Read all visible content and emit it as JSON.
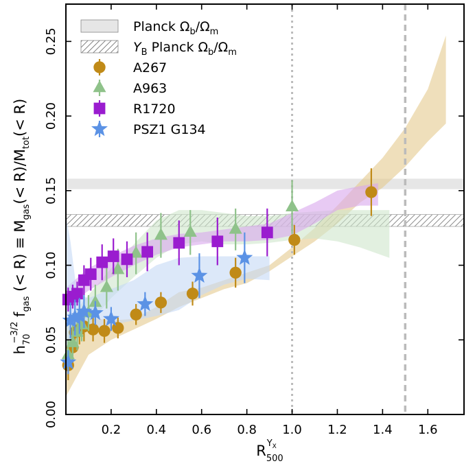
{
  "chart_data": {
    "type": "scatter",
    "xlabel": "R_500^{Y_X}",
    "ylabel": "h_70^{-3/2} f_gas (< R) ≡ M_gas(< R)/M_tot(< R)",
    "xlim": [
      0.0,
      1.76
    ],
    "ylim": [
      0.0,
      0.275
    ],
    "x_ticks": [
      "0.2",
      "0.4",
      "0.6",
      "0.8",
      "1.0",
      "1.2",
      "1.4",
      "1.6"
    ],
    "y_ticks": [
      "0.00",
      "0.05",
      "0.10",
      "0.15",
      "0.20",
      "0.25"
    ],
    "grid": false,
    "legend_position": "top-left",
    "reference_lines": [
      {
        "x": 1.0,
        "style": "dotted",
        "color": "#bbbbbb"
      },
      {
        "x": 1.5,
        "style": "dashed",
        "color": "#bbbbbb"
      }
    ],
    "horizontal_bands": [
      {
        "name": "Planck Ω_b/Ω_m",
        "y": [
          0.151,
          0.158
        ],
        "fill": "#e6e6e6",
        "hatch": false
      },
      {
        "name": "Y_B Planck Ω_b/Ω_m",
        "y": [
          0.126,
          0.134
        ],
        "fill": "#ffffff",
        "hatch": true
      }
    ],
    "series": [
      {
        "name": "A267",
        "marker": "circle",
        "color": "#c08a17",
        "band_color": "#e4c98e",
        "points": [
          [
            0.01,
            0.033,
            0.01
          ],
          [
            0.03,
            0.045,
            0.012
          ],
          [
            0.04,
            0.055,
            0.012
          ],
          [
            0.06,
            0.057,
            0.01
          ],
          [
            0.08,
            0.059,
            0.01
          ],
          [
            0.12,
            0.057,
            0.008
          ],
          [
            0.17,
            0.056,
            0.008
          ],
          [
            0.23,
            0.058,
            0.007
          ],
          [
            0.31,
            0.067,
            0.007
          ],
          [
            0.42,
            0.075,
            0.007
          ],
          [
            0.56,
            0.081,
            0.008
          ],
          [
            0.75,
            0.095,
            0.01
          ],
          [
            1.01,
            0.117,
            0.01
          ],
          [
            1.35,
            0.149,
            0.016
          ]
        ],
        "band_upper": [
          [
            0.0,
            0.06
          ],
          [
            0.1,
            0.065
          ],
          [
            0.2,
            0.063
          ],
          [
            0.3,
            0.064
          ],
          [
            0.4,
            0.072
          ],
          [
            0.5,
            0.082
          ],
          [
            0.6,
            0.085
          ],
          [
            0.7,
            0.09
          ],
          [
            0.8,
            0.095
          ],
          [
            0.9,
            0.1
          ],
          [
            1.0,
            0.112
          ],
          [
            1.1,
            0.125
          ],
          [
            1.2,
            0.14
          ],
          [
            1.3,
            0.156
          ],
          [
            1.4,
            0.172
          ],
          [
            1.5,
            0.192
          ],
          [
            1.6,
            0.218
          ],
          [
            1.68,
            0.254
          ]
        ],
        "band_lower": [
          [
            1.68,
            0.195
          ],
          [
            1.6,
            0.183
          ],
          [
            1.5,
            0.166
          ],
          [
            1.4,
            0.152
          ],
          [
            1.3,
            0.142
          ],
          [
            1.2,
            0.128
          ],
          [
            1.1,
            0.116
          ],
          [
            1.0,
            0.106
          ],
          [
            0.9,
            0.096
          ],
          [
            0.8,
            0.088
          ],
          [
            0.7,
            0.084
          ],
          [
            0.6,
            0.078
          ],
          [
            0.5,
            0.072
          ],
          [
            0.4,
            0.064
          ],
          [
            0.3,
            0.057
          ],
          [
            0.2,
            0.05
          ],
          [
            0.1,
            0.04
          ],
          [
            0.0,
            0.012
          ]
        ]
      },
      {
        "name": "A963",
        "marker": "triangle",
        "color": "#8fc28a",
        "band_color": "#cfe6cc",
        "points": [
          [
            0.01,
            0.04,
            0.01
          ],
          [
            0.03,
            0.048,
            0.012
          ],
          [
            0.05,
            0.055,
            0.012
          ],
          [
            0.07,
            0.06,
            0.011
          ],
          [
            0.1,
            0.068,
            0.012
          ],
          [
            0.13,
            0.075,
            0.012
          ],
          [
            0.18,
            0.085,
            0.014
          ],
          [
            0.23,
            0.097,
            0.014
          ],
          [
            0.31,
            0.108,
            0.014
          ],
          [
            0.42,
            0.12,
            0.015
          ],
          [
            0.55,
            0.122,
            0.015
          ],
          [
            0.75,
            0.124,
            0.014
          ],
          [
            1.0,
            0.139,
            0.018
          ]
        ],
        "band_upper": [
          [
            0.0,
            0.062
          ],
          [
            0.1,
            0.08
          ],
          [
            0.2,
            0.098
          ],
          [
            0.3,
            0.114
          ],
          [
            0.4,
            0.13
          ],
          [
            0.5,
            0.137
          ],
          [
            0.6,
            0.137
          ],
          [
            0.7,
            0.135
          ],
          [
            0.8,
            0.133
          ],
          [
            0.9,
            0.133
          ],
          [
            1.0,
            0.135
          ],
          [
            1.1,
            0.136
          ],
          [
            1.2,
            0.137
          ],
          [
            1.3,
            0.137
          ],
          [
            1.43,
            0.137
          ]
        ],
        "band_lower": [
          [
            1.43,
            0.105
          ],
          [
            1.3,
            0.112
          ],
          [
            1.2,
            0.116
          ],
          [
            1.1,
            0.118
          ],
          [
            1.0,
            0.117
          ],
          [
            0.9,
            0.115
          ],
          [
            0.8,
            0.114
          ],
          [
            0.7,
            0.114
          ],
          [
            0.6,
            0.116
          ],
          [
            0.5,
            0.114
          ],
          [
            0.4,
            0.105
          ],
          [
            0.3,
            0.092
          ],
          [
            0.2,
            0.078
          ],
          [
            0.1,
            0.06
          ],
          [
            0.0,
            0.03
          ]
        ]
      },
      {
        "name": "R1720",
        "marker": "square",
        "color": "#9a1ccf",
        "band_color": "#d8a7ec",
        "points": [
          [
            0.01,
            0.077,
            0.008
          ],
          [
            0.03,
            0.079,
            0.008
          ],
          [
            0.05,
            0.081,
            0.008
          ],
          [
            0.08,
            0.09,
            0.01
          ],
          [
            0.11,
            0.094,
            0.011
          ],
          [
            0.16,
            0.102,
            0.012
          ],
          [
            0.21,
            0.106,
            0.012
          ],
          [
            0.27,
            0.104,
            0.012
          ],
          [
            0.36,
            0.109,
            0.013
          ],
          [
            0.5,
            0.115,
            0.015
          ],
          [
            0.67,
            0.116,
            0.016
          ],
          [
            0.89,
            0.122,
            0.016
          ]
        ],
        "band_upper": [
          [
            0.0,
            0.085
          ],
          [
            0.1,
            0.098
          ],
          [
            0.2,
            0.106
          ],
          [
            0.3,
            0.113
          ],
          [
            0.4,
            0.118
          ],
          [
            0.5,
            0.121
          ],
          [
            0.6,
            0.122
          ],
          [
            0.7,
            0.124
          ],
          [
            0.8,
            0.126
          ],
          [
            0.9,
            0.128
          ],
          [
            1.0,
            0.135
          ],
          [
            1.1,
            0.142
          ],
          [
            1.2,
            0.15
          ],
          [
            1.3,
            0.153
          ],
          [
            1.38,
            0.155
          ]
        ],
        "band_lower": [
          [
            1.38,
            0.14
          ],
          [
            1.3,
            0.14
          ],
          [
            1.2,
            0.137
          ],
          [
            1.1,
            0.128
          ],
          [
            1.0,
            0.12
          ],
          [
            0.9,
            0.117
          ],
          [
            0.8,
            0.116
          ],
          [
            0.7,
            0.116
          ],
          [
            0.6,
            0.114
          ],
          [
            0.5,
            0.112
          ],
          [
            0.4,
            0.107
          ],
          [
            0.3,
            0.1
          ],
          [
            0.2,
            0.092
          ],
          [
            0.1,
            0.083
          ],
          [
            0.0,
            0.072
          ]
        ]
      },
      {
        "name": "PSZ1 G134",
        "marker": "star",
        "color": "#5b92e5",
        "band_color": "#c4d8f5",
        "points": [
          [
            0.01,
            0.035,
            0.008
          ],
          [
            0.02,
            0.063,
            0.012
          ],
          [
            0.04,
            0.065,
            0.012
          ],
          [
            0.06,
            0.066,
            0.012
          ],
          [
            0.08,
            0.069,
            0.011
          ],
          [
            0.13,
            0.068,
            0.008
          ],
          [
            0.2,
            0.064,
            0.008
          ],
          [
            0.35,
            0.074,
            0.008
          ],
          [
            0.59,
            0.093,
            0.015
          ],
          [
            0.79,
            0.105,
            0.017
          ]
        ],
        "band_upper": [
          [
            0.0,
            0.133
          ],
          [
            0.02,
            0.116
          ],
          [
            0.05,
            0.08
          ],
          [
            0.1,
            0.078
          ],
          [
            0.2,
            0.084
          ],
          [
            0.3,
            0.09
          ],
          [
            0.4,
            0.1
          ],
          [
            0.5,
            0.105
          ],
          [
            0.6,
            0.106
          ],
          [
            0.7,
            0.106
          ],
          [
            0.8,
            0.106
          ],
          [
            0.9,
            0.106
          ]
        ],
        "band_lower": [
          [
            0.9,
            0.09
          ],
          [
            0.8,
            0.091
          ],
          [
            0.7,
            0.087
          ],
          [
            0.6,
            0.08
          ],
          [
            0.5,
            0.07
          ],
          [
            0.4,
            0.066
          ],
          [
            0.3,
            0.063
          ],
          [
            0.2,
            0.06
          ],
          [
            0.1,
            0.056
          ],
          [
            0.05,
            0.052
          ],
          [
            0.0,
            0.03
          ]
        ]
      }
    ]
  }
}
